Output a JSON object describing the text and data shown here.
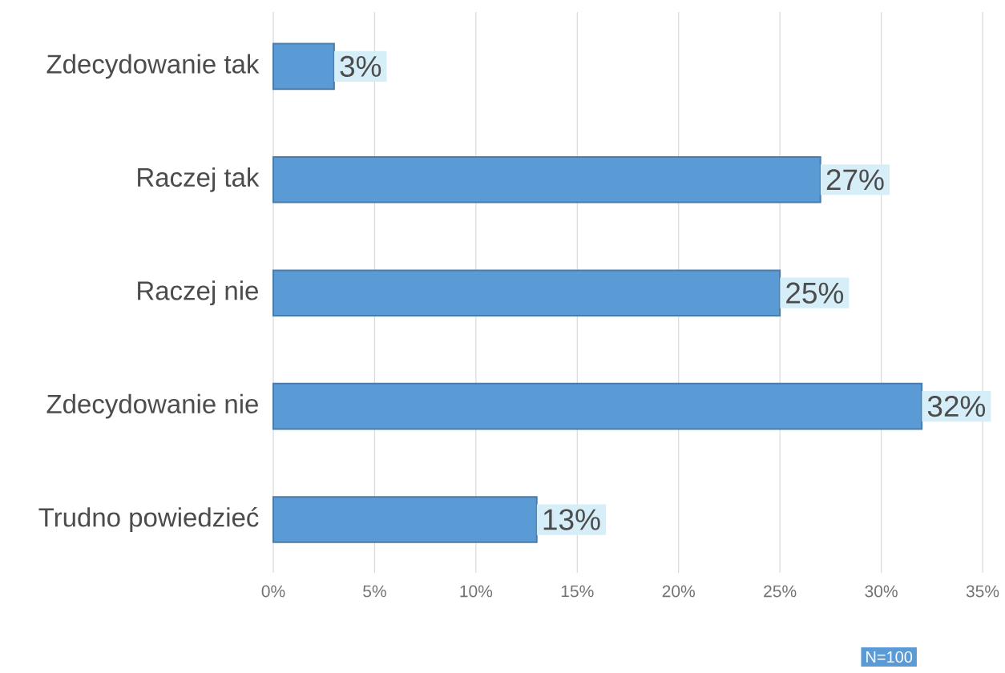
{
  "chart_data": {
    "type": "bar",
    "orientation": "horizontal",
    "categories": [
      "Zdecydowanie tak",
      "Raczej tak",
      "Raczej nie",
      "Zdecydowanie nie",
      "Trudno powiedzieć"
    ],
    "values": [
      3,
      27,
      25,
      32,
      13
    ],
    "value_labels": [
      "3%",
      "27%",
      "25%",
      "32%",
      "13%"
    ],
    "color": "#5b9bd5",
    "xlim": [
      0,
      35
    ],
    "xticks": [
      {
        "value": 0,
        "label": "0%"
      },
      {
        "value": 5,
        "label": "5%"
      },
      {
        "value": 10,
        "label": "10%"
      },
      {
        "value": 15,
        "label": "15%"
      },
      {
        "value": 20,
        "label": "20%"
      },
      {
        "value": 25,
        "label": "25%"
      },
      {
        "value": 30,
        "label": "30%"
      },
      {
        "value": 35,
        "label": "35%"
      }
    ],
    "grid": "x",
    "annotations": [
      "N=100"
    ]
  }
}
